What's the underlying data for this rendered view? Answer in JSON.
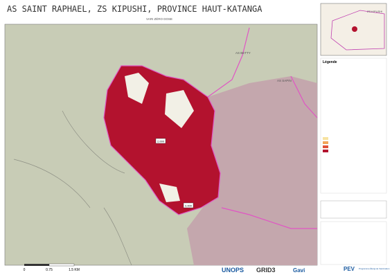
{
  "header": {
    "title": "AS SAINT RAPHAEL, ZS KIPUSHI, PROVINCE HAUT-KATANGA",
    "subtitle": "VARI ZÉRO DOSE"
  },
  "map": {
    "area_labels": [
      "AS BETTY",
      "AS SAPIN"
    ],
    "count_labels": [
      "2,000",
      "2,000"
    ]
  },
  "scale": {
    "labels": [
      "0",
      "0.75",
      "1.5 KM"
    ]
  },
  "inset": {
    "label": "ZS KIPUSHI"
  },
  "legend": {
    "title": "Légende"
  },
  "logos": [
    "UNOPS",
    "GRID3",
    "Gavi",
    "PEV",
    "Programme Élargi de Vaccination"
  ]
}
